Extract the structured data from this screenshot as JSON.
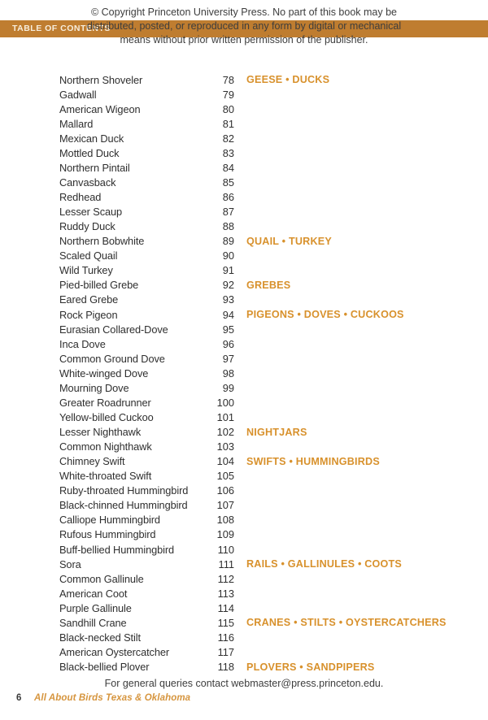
{
  "copyright_overlay": {
    "line1": "© Copyright Princeton University Press. No part of this book may be",
    "line2": "distributed, posted, or reproduced in any form by digital or mechanical",
    "line3": "means without prior written permission of the publisher."
  },
  "header": {
    "banner_label": "TABLE OF CONTENTS"
  },
  "toc": {
    "entries": [
      {
        "name": "Northern Shoveler",
        "page": "78",
        "category": "GEESE • DUCKS"
      },
      {
        "name": "Gadwall",
        "page": "79",
        "category": ""
      },
      {
        "name": "American Wigeon",
        "page": "80",
        "category": ""
      },
      {
        "name": "Mallard",
        "page": "81",
        "category": ""
      },
      {
        "name": "Mexican Duck",
        "page": "82",
        "category": ""
      },
      {
        "name": "Mottled Duck",
        "page": "83",
        "category": ""
      },
      {
        "name": "Northern Pintail",
        "page": "84",
        "category": ""
      },
      {
        "name": "Canvasback",
        "page": "85",
        "category": ""
      },
      {
        "name": "Redhead",
        "page": "86",
        "category": ""
      },
      {
        "name": "Lesser Scaup",
        "page": "87",
        "category": ""
      },
      {
        "name": "Ruddy Duck",
        "page": "88",
        "category": ""
      },
      {
        "name": "Northern Bobwhite",
        "page": "89",
        "category": "QUAIL • TURKEY"
      },
      {
        "name": "Scaled Quail",
        "page": "90",
        "category": ""
      },
      {
        "name": "Wild Turkey",
        "page": "91",
        "category": ""
      },
      {
        "name": "Pied-billed Grebe",
        "page": "92",
        "category": "GREBES"
      },
      {
        "name": "Eared Grebe",
        "page": "93",
        "category": ""
      },
      {
        "name": "Rock Pigeon",
        "page": "94",
        "category": "PIGEONS • DOVES • CUCKOOS"
      },
      {
        "name": "Eurasian Collared-Dove",
        "page": "95",
        "category": ""
      },
      {
        "name": "Inca Dove",
        "page": "96",
        "category": ""
      },
      {
        "name": "Common Ground Dove",
        "page": "97",
        "category": ""
      },
      {
        "name": "White-winged Dove",
        "page": "98",
        "category": ""
      },
      {
        "name": "Mourning Dove",
        "page": "99",
        "category": ""
      },
      {
        "name": "Greater Roadrunner",
        "page": "100",
        "category": ""
      },
      {
        "name": "Yellow-billed Cuckoo",
        "page": "101",
        "category": ""
      },
      {
        "name": "Lesser Nighthawk",
        "page": "102",
        "category": "NIGHTJARS"
      },
      {
        "name": "Common Nighthawk",
        "page": "103",
        "category": ""
      },
      {
        "name": "Chimney Swift",
        "page": "104",
        "category": "SWIFTS • HUMMINGBIRDS"
      },
      {
        "name": "White-throated Swift",
        "page": "105",
        "category": ""
      },
      {
        "name": "Ruby-throated Hummingbird",
        "page": "106",
        "category": ""
      },
      {
        "name": "Black-chinned Hummingbird",
        "page": "107",
        "category": ""
      },
      {
        "name": "Calliope Hummingbird",
        "page": "108",
        "category": ""
      },
      {
        "name": "Rufous Hummingbird",
        "page": "109",
        "category": ""
      },
      {
        "name": "Buff-bellied Hummingbird",
        "page": "110",
        "category": ""
      },
      {
        "name": "Sora",
        "page": "111",
        "category": "RAILS • GALLINULES • COOTS"
      },
      {
        "name": "Common Gallinule",
        "page": "112",
        "category": ""
      },
      {
        "name": "American Coot",
        "page": "113",
        "category": ""
      },
      {
        "name": "Purple Gallinule",
        "page": "114",
        "category": ""
      },
      {
        "name": "Sandhill Crane",
        "page": "115",
        "category": "CRANES • STILTS • OYSTERCATCHERS"
      },
      {
        "name": "Black-necked Stilt",
        "page": "116",
        "category": ""
      },
      {
        "name": "American Oystercatcher",
        "page": "117",
        "category": ""
      },
      {
        "name": "Black-bellied Plover",
        "page": "118",
        "category": "PLOVERS • SANDPIPERS"
      }
    ]
  },
  "footer": {
    "query_line": "For general queries contact webmaster@press.princeton.edu.",
    "page_number": "6",
    "book_title": "All About Birds Texas & Oklahoma"
  },
  "colors": {
    "banner_orange": "#bf7d30",
    "category_orange": "#d8912c",
    "footer_title_orange": "#d6953e",
    "text_dark": "#2f2f2f"
  }
}
